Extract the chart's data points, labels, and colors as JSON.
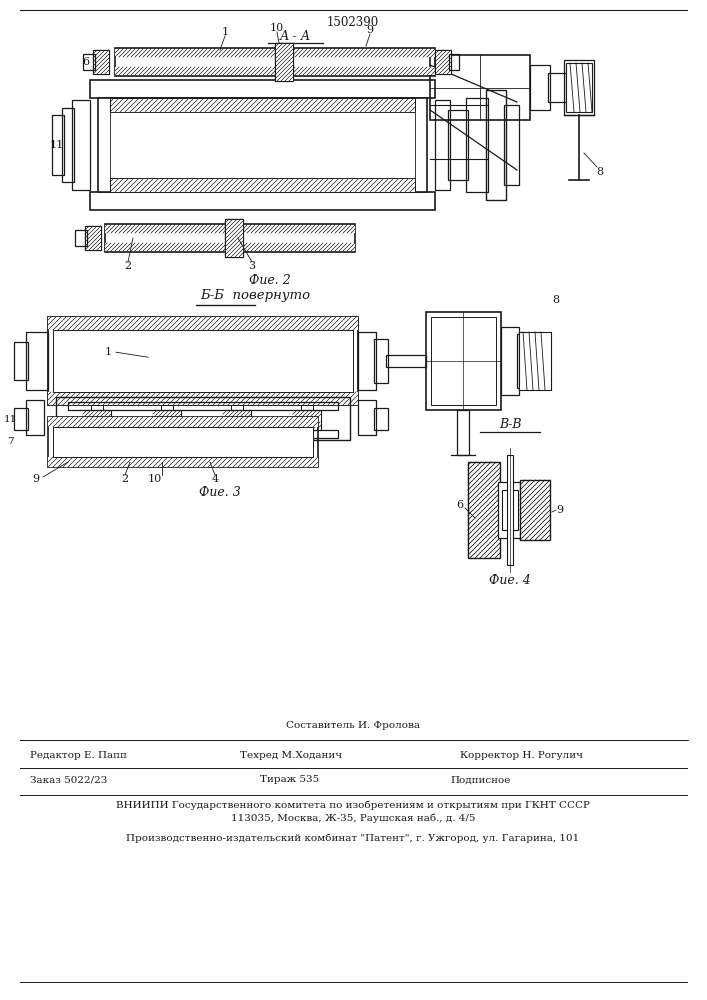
{
  "patent_number": "1502390",
  "fig2_label": "А - А",
  "fig2_caption": "Фие. 2",
  "fig3_label": "Б-Б  повернуто",
  "fig3_caption": "Фие. 3",
  "fig4_label": "В-В",
  "fig4_caption": "Фие. 4",
  "bg_color": "#ffffff",
  "lc": "#1a1a1a",
  "editor_text": "Редактор Е. Папп",
  "sostavitel_text": "Составитель И. Фролова",
  "tekhred_text": "Техред М.Ходанич",
  "korrektor_text": "Корректор Н. Рогулич",
  "order_text": "Заказ 5022/23",
  "tirazh_text": "Тираж 535",
  "podpisnoe_text": "Подписное",
  "vniiipi_text": "ВНИИПИ Государственного комитета по изобретениям и открытиям при ГКНТ СССР",
  "address_text": "113035, Москва, Ж-35, Раушская наб., д. 4/5",
  "publisher_text": "Производственно-издательский комбинат \"Патент\", г. Ужгород, ул. Гагарина, 101"
}
